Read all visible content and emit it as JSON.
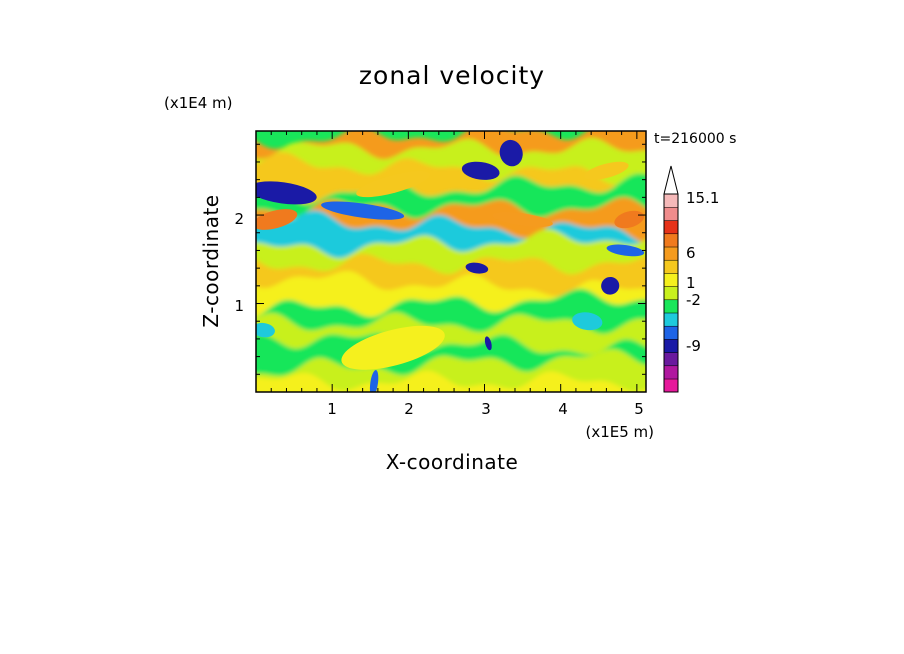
{
  "chart_data": {
    "type": "heatmap",
    "title": "zonal velocity",
    "xlabel": "X-coordinate",
    "ylabel": "Z-coordinate",
    "x_multiplier": "(x1E5 m)",
    "y_multiplier": "(x1E4 m)",
    "time_label": "t=216000 s",
    "xlim": [
      0,
      5.12
    ],
    "ylim": [
      0,
      2.95
    ],
    "x_ticks": [
      "1",
      "2",
      "3",
      "4",
      "5"
    ],
    "y_ticks": [
      "1",
      "2"
    ],
    "colorbar": {
      "labels": [
        "15.1",
        "6",
        "1",
        "-2",
        "-9"
      ],
      "levels": [
        {
          "color": "#e6199b"
        },
        {
          "color": "#b0189f"
        },
        {
          "color": "#6a1a9e"
        },
        {
          "color": "#1a1aa6"
        },
        {
          "color": "#1e64e6"
        },
        {
          "color": "#1ecadc"
        },
        {
          "color": "#19e65a"
        },
        {
          "color": "#c8f01e"
        },
        {
          "color": "#f5f01e"
        },
        {
          "color": "#f5c81e"
        },
        {
          "color": "#f59b1e"
        },
        {
          "color": "#f07a1e"
        },
        {
          "color": "#e63219"
        },
        {
          "color": "#f08c8c"
        },
        {
          "color": "#f5b9b9"
        }
      ]
    },
    "bands": [
      {
        "z": 0.12,
        "level": 8
      },
      {
        "z": 0.32,
        "level": 7
      },
      {
        "z": 0.55,
        "level": 6
      },
      {
        "z": 0.78,
        "level": 7
      },
      {
        "z": 1.0,
        "level": 6
      },
      {
        "z": 1.22,
        "level": 8
      },
      {
        "z": 1.45,
        "level": 9
      },
      {
        "z": 1.68,
        "level": 7
      },
      {
        "z": 1.88,
        "level": 5
      },
      {
        "z": 2.08,
        "level": 10
      },
      {
        "z": 2.3,
        "level": 6
      },
      {
        "z": 2.52,
        "level": 9
      },
      {
        "z": 2.75,
        "level": 7
      },
      {
        "z": 2.92,
        "level": 10
      }
    ],
    "features": [
      {
        "x": 0.35,
        "z": 2.25,
        "rx": 0.45,
        "rz": 0.12,
        "level": 3
      },
      {
        "x": 0.25,
        "z": 1.95,
        "rx": 0.3,
        "rz": 0.1,
        "level": 11
      },
      {
        "x": 1.4,
        "z": 2.05,
        "rx": 0.55,
        "rz": 0.08,
        "level": 4
      },
      {
        "x": 1.8,
        "z": 2.35,
        "rx": 0.5,
        "rz": 0.1,
        "level": 9
      },
      {
        "x": 2.95,
        "z": 2.5,
        "rx": 0.25,
        "rz": 0.1,
        "level": 3
      },
      {
        "x": 3.35,
        "z": 2.7,
        "rx": 0.15,
        "rz": 0.15,
        "level": 3
      },
      {
        "x": 2.9,
        "z": 1.4,
        "rx": 0.15,
        "rz": 0.06,
        "level": 3
      },
      {
        "x": 4.65,
        "z": 1.2,
        "rx": 0.12,
        "rz": 0.1,
        "level": 3
      },
      {
        "x": 4.85,
        "z": 1.6,
        "rx": 0.25,
        "rz": 0.06,
        "level": 4
      },
      {
        "x": 4.9,
        "z": 1.95,
        "rx": 0.2,
        "rz": 0.09,
        "level": 11
      },
      {
        "x": 4.35,
        "z": 0.8,
        "rx": 0.2,
        "rz": 0.1,
        "level": 5
      },
      {
        "x": 1.8,
        "z": 0.5,
        "rx": 0.7,
        "rz": 0.2,
        "level": 8
      },
      {
        "x": 3.5,
        "z": 1.95,
        "rx": 0.4,
        "rz": 0.07,
        "level": 10
      },
      {
        "x": 4.6,
        "z": 2.5,
        "rx": 0.3,
        "rz": 0.08,
        "level": 9
      },
      {
        "x": 1.55,
        "z": 0.1,
        "rx": 0.05,
        "rz": 0.15,
        "level": 4
      },
      {
        "x": 3.05,
        "z": 0.55,
        "rx": 0.04,
        "rz": 0.08,
        "level": 3
      },
      {
        "x": 0.1,
        "z": 0.7,
        "rx": 0.15,
        "rz": 0.08,
        "level": 5
      }
    ]
  }
}
